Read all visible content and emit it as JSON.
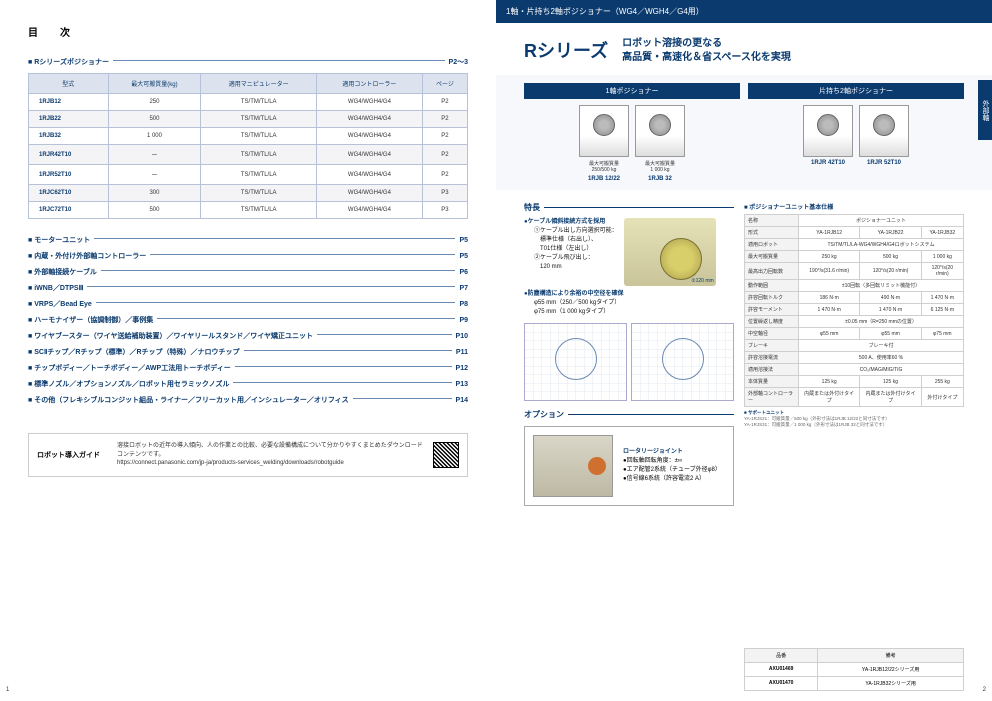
{
  "left": {
    "toc_title": "目　次",
    "top_section": {
      "label": "Rシリーズポジショナー",
      "page": "P2〜3"
    },
    "table": {
      "headers": [
        "型式",
        "最大可搬質量(kg)",
        "適用マニピュレーター",
        "適用コントローラー",
        "ページ"
      ],
      "rows": [
        [
          "1RJB12",
          "250",
          "TS/TM/TL/LA",
          "WG4/WGH4/G4",
          "P2"
        ],
        [
          "1RJB22",
          "500",
          "TS/TM/TL/LA",
          "WG4/WGH4/G4",
          "P2"
        ],
        [
          "1RJB32",
          "1 000",
          "TS/TM/TL/LA",
          "WG4/WGH4/G4",
          "P2"
        ],
        [
          "1RJR42T10",
          "ー",
          "TS/TM/TL/LA",
          "WG4/WGH4/G4",
          "P2"
        ],
        [
          "1RJR52T10",
          "ー",
          "TS/TM/TL/LA",
          "WG4/WGH4/G4",
          "P2"
        ],
        [
          "1RJC62T10",
          "300",
          "TS/TM/TL/LA",
          "WG4/WGH4/G4",
          "P3"
        ],
        [
          "1RJC72T10",
          "500",
          "TS/TM/TL/LA",
          "WG4/WGH4/G4",
          "P3"
        ]
      ]
    },
    "sections": [
      {
        "label": "モーターユニット",
        "page": "P5"
      },
      {
        "label": "内蔵・外付け外部軸コントローラー",
        "page": "P5"
      },
      {
        "label": "外部軸接続ケーブル",
        "page": "P6"
      },
      {
        "label": "iWNB／DTPSⅢ",
        "page": "P7"
      },
      {
        "label": "VRPS／Bead Eye",
        "page": "P8"
      },
      {
        "label": "ハーモナイザー（協調制御）／事例集",
        "page": "P9"
      },
      {
        "label": "ワイヤブースター（ワイヤ送給補助装置）／ワイヤリールスタンド／ワイヤ矯正ユニット",
        "page": "P10"
      },
      {
        "label": "SCⅡチップ／Rチップ（標準）／Rチップ（特殊）／ナロウチップ",
        "page": "P11"
      },
      {
        "label": "チップボディー／トーチボディー／AWP工法用トーチボディー",
        "page": "P12"
      },
      {
        "label": "標準ノズル／オプションノズル／ロボット用セラミックノズル",
        "page": "P13"
      },
      {
        "label": "その他（フレキシブルコンジット組品・ライナー／フリーカット用／インシュレーター／オリフィス",
        "page": "P14"
      }
    ],
    "guide": {
      "title": "ロボット導入ガイド",
      "text1": "溶接ロボットの近年の導入傾向、人の作業との比較、必要な設備構成について分かりやすくまとめたダウンロードコンテンツです。",
      "text2": "https://connect.panasonic.com/jp-ja/products-services_welding/downloads/robotguide"
    },
    "page_num": "1"
  },
  "right": {
    "banner": "1軸・片持ち2軸ポジショナー（WG4／WGH4／G4用）",
    "side_tab": "外部軸",
    "brand": "Rシリーズ",
    "tagline1": "ロボット溶接の更なる",
    "tagline2": "高品質・高速化＆省スペース化を実現",
    "prod_heads": [
      "1軸ポジショナー",
      "片持ち2軸ポジショナー"
    ],
    "prods_left": [
      {
        "cap": "最大可搬質量\n250/500 kg",
        "name": "1RJB 12/22"
      },
      {
        "cap": "最大可搬質量\n1 000 kg",
        "name": "1RJB 32"
      }
    ],
    "prods_right": [
      {
        "cap": "",
        "name": "1RJR 42T10"
      },
      {
        "cap": "",
        "name": "1RJR 52T10"
      }
    ],
    "feature_heading": "特長",
    "feat1": {
      "head": "●ケーブル傾斜接続方式を採用",
      "s1": "①ケーブル出し方向選択可能：",
      "s2": "　標準仕様（右出し）、",
      "s3": "　T01仕様（左出し）",
      "s4": "②ケーブル飛び出し：",
      "s5": "　120 mm",
      "dim": "120 mm"
    },
    "feat2": {
      "head": "●防塵構造により余裕の中空径を確保",
      "s1": "φ55 mm（250／500 kgタイプ）",
      "s2": "φ75 mm（1 000 kgタイプ）"
    },
    "spec_title": "■ ポジショナーユニット基本仕様",
    "spec": {
      "cols_header": "ポジショナーユニット",
      "rows": [
        [
          "名称",
          "ポジショナーユニット",
          "",
          ""
        ],
        [
          "形式",
          "YA-1RJB12",
          "YA-1RJB22",
          "YA-1RJB32"
        ],
        [
          "適用ロボット",
          "TS/TM/TL/LA-WG4/WGH4/G4ロボットシステム",
          "",
          ""
        ],
        [
          "最大可搬質量",
          "250 kg",
          "500 kg",
          "1 000 kg"
        ],
        [
          "最高出力回転数",
          "190°/s(31.6 r/min)",
          "120°/s(20 r/min)",
          "120°/s(20 r/min)"
        ],
        [
          "動作範囲",
          "±10回転（多回転リミット機能付）",
          "",
          ""
        ],
        [
          "許容回転トルク",
          "186 N·m",
          "490 N·m",
          "1 470 N·m"
        ],
        [
          "許容モーメント",
          "1 470 N·m",
          "1 470 N·m",
          "6 125 N·m"
        ],
        [
          "位置繰返し精度",
          "±0.05 mm（R=250 mmの位置）",
          "",
          ""
        ],
        [
          "中空軸径",
          "φ55 mm",
          "φ55 mm",
          "φ75 mm"
        ],
        [
          "ブレーキ",
          "ブレーキ付",
          "",
          ""
        ],
        [
          "許容溶接電流",
          "500 A、使用率60 %",
          "",
          ""
        ],
        [
          "適用溶接法",
          "CO₂/MAG/MIG/TIG",
          "",
          ""
        ],
        [
          "本体質量",
          "125 kg",
          "125 kg",
          "255 kg"
        ],
        [
          "外部軸コントローラー",
          "内蔵または外付けタイプ",
          "内蔵または外付けタイプ",
          "外付けタイプ"
        ]
      ],
      "note_h": "■ サポートユニット",
      "note1": "YA-1RJS21：可搬質量／500 kg（外形寸法は1RJB 12/22と同寸法です）",
      "note2": "YA-1RJS31：可搬質量／1 000 kg（外形寸法は1RJB 32と同寸法です）"
    },
    "option_heading": "オプション",
    "option": {
      "head": "ロータリージョイント",
      "s1": "●回転軸回転角度：±∞",
      "s2": "●エア配管2系統（チューブ外径φ8）",
      "s3": "●信号線6系統（許容電流2 A）"
    },
    "opt_table": {
      "headers": [
        "品番",
        "備考"
      ],
      "rows": [
        [
          "AXU01469",
          "YA-1RJB12/22シリーズ用"
        ],
        [
          "AXU01470",
          "YA-1RJB32シリーズ用"
        ]
      ]
    },
    "page_num": "2"
  }
}
